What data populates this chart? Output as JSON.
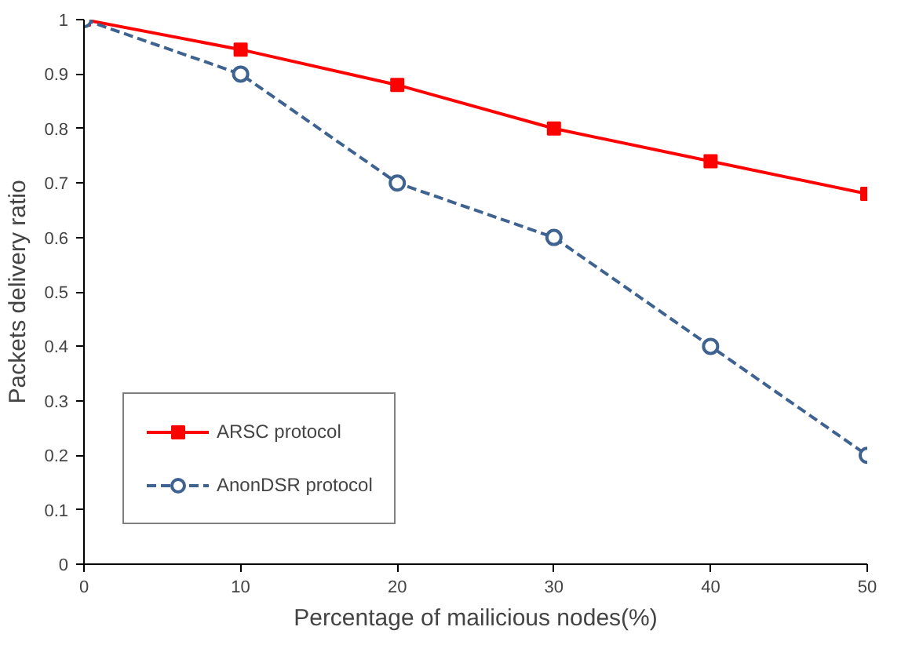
{
  "chart_data": {
    "type": "line",
    "xlabel": "Percentage of mailicious nodes(%)",
    "ylabel": "Packets delivery ratio",
    "x": [
      0,
      10,
      20,
      30,
      40,
      50
    ],
    "series": [
      {
        "name": "ARSC protocol",
        "color": "#ff0000",
        "values": [
          1,
          0.945,
          0.88,
          0.8,
          0.74,
          0.68
        ],
        "marker": "square",
        "line_style": "solid"
      },
      {
        "name": "AnonDSR protocol",
        "color": "#3f6391",
        "values": [
          1,
          0.9,
          0.7,
          0.6,
          0.4,
          0.2
        ],
        "marker": "circle",
        "line_style": "dashed"
      }
    ],
    "xlim": [
      0,
      50
    ],
    "xticks": [
      0,
      10,
      20,
      30,
      40,
      50
    ],
    "ylim": [
      0,
      1
    ],
    "yticks": [
      0,
      0.1,
      0.2,
      0.3,
      0.4,
      0.5,
      0.6,
      0.7,
      0.8,
      0.9,
      1
    ],
    "grid": false,
    "legend": "bottom left"
  }
}
